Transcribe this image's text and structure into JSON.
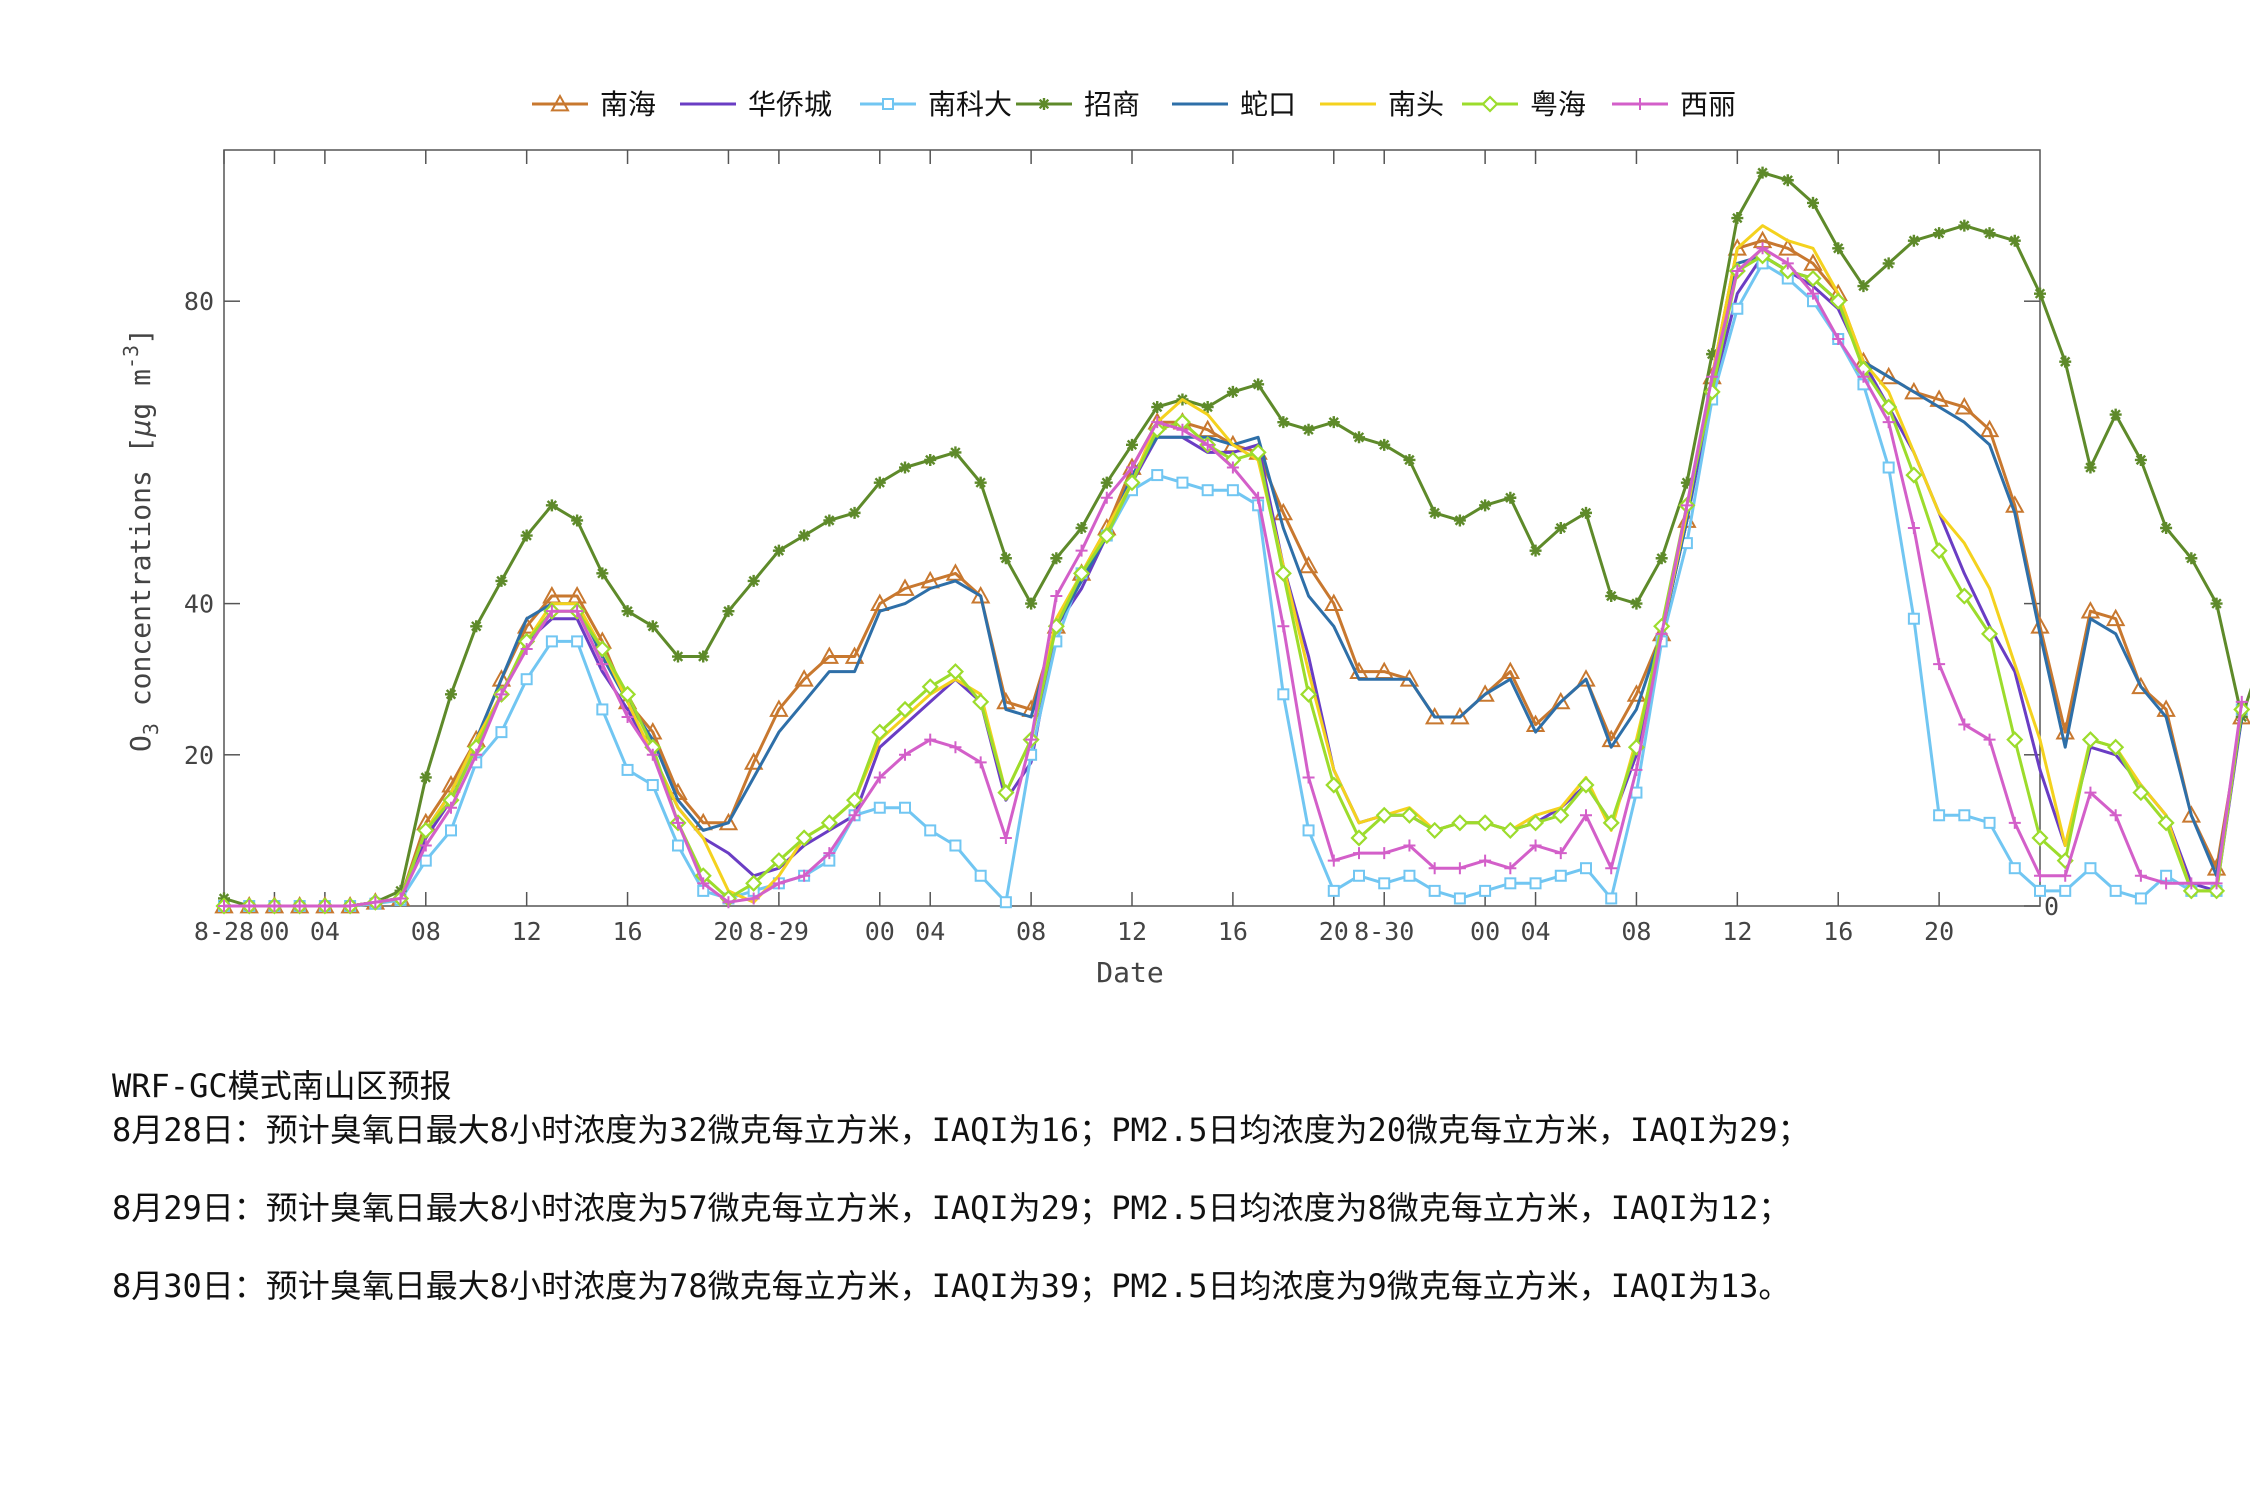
{
  "chart_data": {
    "type": "line",
    "ylabel": "O3 concentrations [μg m-3]",
    "xlabel": "Date",
    "ylim": [
      0,
      100
    ],
    "xlim": [
      0,
      72
    ],
    "yticks": [
      0,
      20,
      40,
      80
    ],
    "xticks": [
      {
        "x": 0,
        "label": "8-28"
      },
      {
        "x": 2,
        "label": "00"
      },
      {
        "x": 4,
        "label": "04"
      },
      {
        "x": 8,
        "label": "08"
      },
      {
        "x": 12,
        "label": "12"
      },
      {
        "x": 16,
        "label": "16"
      },
      {
        "x": 20,
        "label": "20"
      },
      {
        "x": 22,
        "label": "8-29"
      },
      {
        "x": 26,
        "label": "00"
      },
      {
        "x": 28,
        "label": "04"
      },
      {
        "x": 32,
        "label": "08"
      },
      {
        "x": 36,
        "label": "12"
      },
      {
        "x": 40,
        "label": "16"
      },
      {
        "x": 44,
        "label": "20"
      },
      {
        "x": 46,
        "label": "8-30"
      },
      {
        "x": 50,
        "label": "00"
      },
      {
        "x": 52,
        "label": "04"
      },
      {
        "x": 56,
        "label": "08"
      },
      {
        "x": 60,
        "label": "12"
      },
      {
        "x": 64,
        "label": "16"
      },
      {
        "x": 68,
        "label": "20"
      }
    ],
    "grid": false,
    "legend_position": "top",
    "series": [
      {
        "name": "南海",
        "color": "#C8782F",
        "marker": "triangle",
        "values": [
          0,
          0,
          0,
          0,
          0,
          0,
          0.5,
          1,
          11,
          16,
          22,
          30,
          37,
          41,
          41,
          35,
          27,
          23,
          15,
          11,
          11,
          19,
          26,
          30,
          33,
          33,
          40,
          42,
          43,
          44,
          41,
          27,
          26,
          37,
          44,
          50,
          58,
          64,
          64,
          63,
          61,
          60,
          52,
          45,
          40,
          31,
          31,
          30,
          25,
          25,
          28,
          31,
          24,
          27,
          30,
          22,
          28,
          36,
          51,
          70,
          87,
          88,
          87,
          85,
          81,
          72,
          70,
          68,
          67,
          66,
          63,
          53,
          37,
          23,
          39,
          38,
          29,
          26,
          12,
          5,
          25
        ]
      },
      {
        "name": "华侨城",
        "color": "#6A3DC4",
        "marker": "none",
        "values": [
          0,
          0,
          0,
          0,
          0,
          0,
          0.5,
          1,
          9,
          14,
          21,
          28,
          35,
          38,
          38,
          31,
          26,
          20,
          13,
          9,
          7,
          4,
          5,
          8,
          10,
          12,
          21,
          24,
          27,
          30,
          27,
          14,
          19,
          37,
          42,
          49,
          56,
          62,
          62,
          60,
          60,
          61,
          45,
          33,
          18,
          11,
          12,
          12,
          10,
          11,
          11,
          10,
          11,
          13,
          16,
          11,
          20,
          36,
          51,
          68,
          81,
          86,
          84,
          82,
          79,
          72,
          66,
          60,
          52,
          44,
          37,
          31,
          18,
          8,
          21,
          20,
          16,
          12,
          3,
          2,
          25
        ]
      },
      {
        "name": "南科大",
        "color": "#71C6F2",
        "marker": "square",
        "values": [
          0,
          0,
          0,
          0,
          0,
          0,
          0.3,
          0.8,
          6,
          10,
          19,
          23,
          30,
          35,
          35,
          26,
          18,
          16,
          8,
          2,
          1,
          2,
          3,
          4,
          6,
          12,
          13,
          13,
          10,
          8,
          4,
          0.5,
          20,
          35,
          44,
          49,
          55,
          57,
          56,
          55,
          55,
          53,
          28,
          10,
          2,
          4,
          3,
          4,
          2,
          1,
          2,
          3,
          3,
          4,
          5,
          1,
          15,
          35,
          48,
          67,
          79,
          85,
          83,
          80,
          75,
          69,
          58,
          38,
          12,
          12,
          11,
          5,
          2,
          2,
          5,
          2,
          1,
          4,
          2,
          2,
          26
        ]
      },
      {
        "name": "招商",
        "color": "#5E8A2A",
        "marker": "star",
        "values": [
          1,
          0,
          0,
          0,
          0,
          0,
          0.5,
          2,
          17,
          28,
          37,
          43,
          49,
          53,
          51,
          44,
          39,
          37,
          33,
          33,
          39,
          43,
          47,
          49,
          51,
          52,
          56,
          58,
          59,
          60,
          56,
          46,
          40,
          46,
          50,
          56,
          61,
          66,
          67,
          66,
          68,
          69,
          64,
          63,
          64,
          62,
          61,
          59,
          52,
          51,
          53,
          54,
          47,
          50,
          52,
          41,
          40,
          46,
          56,
          73,
          91,
          97,
          96,
          93,
          87,
          82,
          85,
          88,
          89,
          90,
          89,
          88,
          81,
          72,
          58,
          65,
          59,
          50,
          46,
          40,
          25,
          35
        ]
      },
      {
        "name": "蛇口",
        "color": "#2E6FA8",
        "marker": "none",
        "values": [
          0,
          0,
          0,
          0,
          0,
          0,
          0.5,
          1,
          10,
          15,
          22,
          30,
          38,
          40,
          40,
          33,
          27,
          22,
          14,
          10,
          11,
          17,
          23,
          27,
          31,
          31,
          39,
          40,
          42,
          43,
          41,
          26,
          25,
          37,
          43,
          49,
          57,
          62,
          62,
          62,
          61,
          62,
          50,
          41,
          37,
          30,
          30,
          30,
          25,
          25,
          28,
          30,
          23,
          27,
          30,
          21,
          26,
          36,
          51,
          70,
          85,
          86,
          84,
          83,
          80,
          72,
          70,
          68,
          66,
          64,
          61,
          52,
          36,
          21,
          38,
          36,
          29,
          25,
          12,
          4,
          25
        ]
      },
      {
        "name": "南头",
        "color": "#F4D21E",
        "marker": "none",
        "values": [
          0,
          0,
          0,
          0,
          0,
          0,
          0.5,
          1,
          10,
          15,
          22,
          28,
          35,
          40,
          40,
          34,
          27,
          20,
          13,
          9,
          2,
          0.5,
          4,
          9,
          11,
          14,
          22,
          25,
          28,
          30,
          28,
          15,
          22,
          38,
          44,
          50,
          56,
          64,
          67,
          65,
          61,
          59,
          45,
          31,
          18,
          11,
          12,
          13,
          10,
          11,
          11,
          10,
          12,
          13,
          17,
          10,
          22,
          36,
          52,
          70,
          87,
          90,
          88,
          87,
          81,
          72,
          68,
          60,
          52,
          48,
          42,
          32,
          22,
          8,
          22,
          21,
          16,
          12,
          2,
          2,
          26
        ]
      },
      {
        "name": "粤海",
        "color": "#9CDC2C",
        "marker": "diamond",
        "values": [
          0,
          0,
          0,
          0,
          0,
          0,
          0.5,
          1,
          10,
          14,
          21,
          28,
          35,
          39,
          39,
          34,
          28,
          21,
          11,
          4,
          1,
          3,
          6,
          9,
          11,
          14,
          23,
          26,
          29,
          31,
          27,
          15,
          22,
          37,
          44,
          49,
          56,
          63,
          64,
          61,
          59,
          60,
          44,
          28,
          16,
          9,
          12,
          12,
          10,
          11,
          11,
          10,
          11,
          12,
          16,
          11,
          21,
          37,
          53,
          68,
          84,
          86,
          84,
          83,
          80,
          71,
          66,
          57,
          47,
          41,
          36,
          22,
          9,
          6,
          22,
          21,
          15,
          11,
          2,
          2,
          26
        ]
      },
      {
        "name": "西丽",
        "color": "#D35FC9",
        "marker": "plus",
        "values": [
          0,
          0,
          0,
          0,
          0,
          0,
          0.5,
          1,
          8,
          13,
          20,
          28,
          34,
          39,
          39,
          32,
          25,
          20,
          11,
          3,
          0.5,
          1,
          3,
          4,
          7,
          12,
          17,
          20,
          22,
          21,
          19,
          9,
          22,
          41,
          47,
          54,
          58,
          64,
          63,
          61,
          58,
          54,
          37,
          17,
          6,
          7,
          7,
          8,
          5,
          5,
          6,
          5,
          8,
          7,
          12,
          5,
          18,
          36,
          53,
          70,
          84,
          87,
          85,
          81,
          75,
          70,
          64,
          50,
          32,
          24,
          22,
          11,
          4,
          4,
          15,
          12,
          4,
          3,
          3,
          3,
          27
        ]
      }
    ]
  },
  "notes": {
    "title": "WRF-GC模式南山区预报",
    "lines": [
      "8月28日：预计臭氧日最大8小时浓度为32微克每立方米，IAQI为16；PM2.5日均浓度为20微克每立方米，IAQI为29；",
      "8月29日：预计臭氧日最大8小时浓度为57微克每立方米，IAQI为29；PM2.5日均浓度为8微克每立方米，IAQI为12；",
      "8月30日：预计臭氧日最大8小时浓度为78微克每立方米，IAQI为39；PM2.5日均浓度为9微克每立方米，IAQI为13。"
    ]
  }
}
